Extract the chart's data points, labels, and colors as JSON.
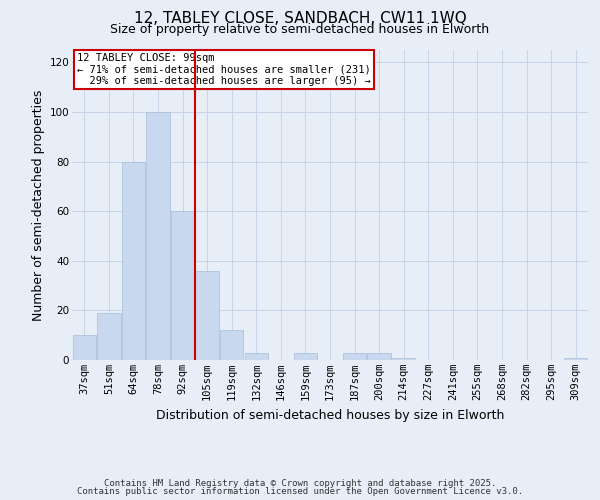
{
  "title1": "12, TABLEY CLOSE, SANDBACH, CW11 1WQ",
  "title2": "Size of property relative to semi-detached houses in Elworth",
  "xlabel": "Distribution of semi-detached houses by size in Elworth",
  "ylabel": "Number of semi-detached properties",
  "categories": [
    "37sqm",
    "51sqm",
    "64sqm",
    "78sqm",
    "92sqm",
    "105sqm",
    "119sqm",
    "132sqm",
    "146sqm",
    "159sqm",
    "173sqm",
    "187sqm",
    "200sqm",
    "214sqm",
    "227sqm",
    "241sqm",
    "255sqm",
    "268sqm",
    "282sqm",
    "295sqm",
    "309sqm"
  ],
  "values": [
    10,
    19,
    80,
    100,
    60,
    36,
    12,
    3,
    0,
    3,
    0,
    3,
    3,
    1,
    0,
    0,
    0,
    0,
    0,
    0,
    1
  ],
  "bar_color": "#c8d8ef",
  "bar_edge_color": "#a8bcd8",
  "vline_color": "#cc0000",
  "annotation_line1": "12 TABLEY CLOSE: 99sqm",
  "annotation_line2": "← 71% of semi-detached houses are smaller (231)",
  "annotation_line3": "  29% of semi-detached houses are larger (95) →",
  "ylim": [
    0,
    125
  ],
  "yticks": [
    0,
    20,
    40,
    60,
    80,
    100,
    120
  ],
  "grid_color": "#c8d4e8",
  "bg_color": "#e8eef8",
  "fig_bg_color": "#e8eef8",
  "footer_line1": "Contains HM Land Registry data © Crown copyright and database right 2025.",
  "footer_line2": "Contains public sector information licensed under the Open Government Licence v3.0.",
  "title_fontsize": 11,
  "subtitle_fontsize": 9,
  "axis_label_fontsize": 9,
  "tick_fontsize": 7.5,
  "annotation_fontsize": 7.5,
  "footer_fontsize": 6.5,
  "vline_pos": 4.5
}
